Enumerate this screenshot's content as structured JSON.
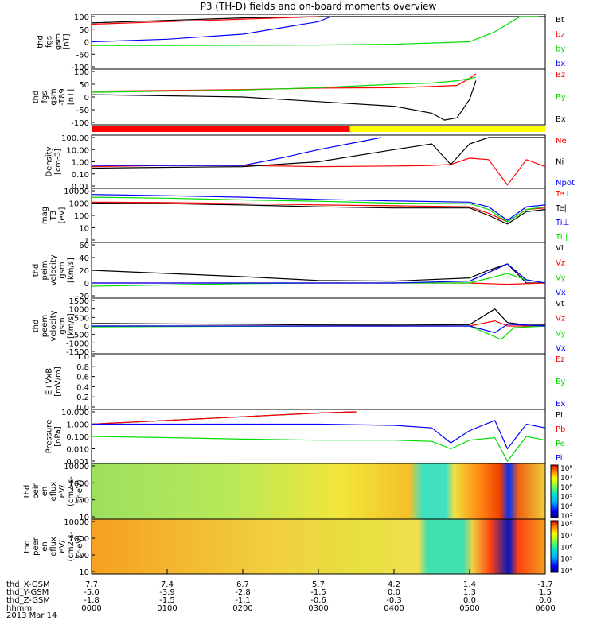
{
  "title": "P3 (TH-D) fields and on-board moments overview",
  "colors": {
    "black": "#000000",
    "red": "#ff0000",
    "green": "#00dd00",
    "blue": "#0000ff",
    "yellow": "#ffff00"
  },
  "panels": [
    {
      "id": "fgs",
      "ylabel": [
        "thd",
        "fgs",
        "gsm",
        "[nT]"
      ],
      "ticks": [
        "100",
        "50",
        "0",
        "-50",
        "-100"
      ],
      "legend": [
        {
          "text": "Bt",
          "color": "black"
        },
        {
          "text": "bz",
          "color": "red"
        },
        {
          "text": "by",
          "color": "green"
        },
        {
          "text": "bx",
          "color": "blue"
        }
      ]
    },
    {
      "id": "fgs_t89",
      "ylabel": [
        "thd",
        "fgs",
        "gsm",
        "-T89",
        "[nT]"
      ],
      "ticks": [
        "100",
        "50",
        "0",
        "-50",
        "-100"
      ],
      "legend": [
        {
          "text": "Bz",
          "color": "red"
        },
        {
          "text": "By",
          "color": "green"
        },
        {
          "text": "Bx",
          "color": "black"
        }
      ]
    },
    {
      "id": "density",
      "ylabel": [
        "Density",
        "[cm-3]"
      ],
      "ticks": [
        "100.00",
        "10.00",
        "1.00",
        "0.10",
        "0.01"
      ],
      "legend": [
        {
          "text": "Ne",
          "color": "red"
        },
        {
          "text": "Ni",
          "color": "black"
        },
        {
          "text": "Npot",
          "color": "blue"
        }
      ]
    },
    {
      "id": "temp",
      "ylabel": [
        "mag",
        "T3",
        "[eV]"
      ],
      "ticks": [
        "10000",
        "1000",
        "100",
        "10",
        "1"
      ],
      "legend": [
        {
          "text": "Te⊥",
          "color": "red"
        },
        {
          "text": "Te||",
          "color": "black"
        },
        {
          "text": "Ti⊥",
          "color": "blue"
        },
        {
          "text": "Ti||",
          "color": "green"
        }
      ]
    },
    {
      "id": "peim",
      "ylabel": [
        "thd",
        "peim",
        "velocity",
        "gsm",
        "[km/s]"
      ],
      "ticks": [
        "60",
        "40",
        "20",
        "0",
        "-20"
      ],
      "legend": [
        {
          "text": "Vt",
          "color": "black"
        },
        {
          "text": "Vz",
          "color": "red"
        },
        {
          "text": "Vy",
          "color": "green"
        },
        {
          "text": "Vx",
          "color": "blue"
        }
      ]
    },
    {
      "id": "peem",
      "ylabel": [
        "thd",
        "peem",
        "velocity",
        "gsm",
        "[km/s]"
      ],
      "ticks": [
        "1500",
        "1000",
        "500",
        "0",
        "-500",
        "-1000",
        "-1500"
      ],
      "legend": [
        {
          "text": "Vt",
          "color": "black"
        },
        {
          "text": "Vz",
          "color": "red"
        },
        {
          "text": "Vy",
          "color": "green"
        },
        {
          "text": "Vx",
          "color": "blue"
        }
      ]
    },
    {
      "id": "efield",
      "ylabel": [
        "E+VxB",
        "[mV/m]"
      ],
      "ticks": [
        "1.0",
        "0.8",
        "0.6",
        "0.4",
        "0.2",
        "0.0"
      ],
      "legend": [
        {
          "text": "Ez",
          "color": "red"
        },
        {
          "text": "Ey",
          "color": "green"
        },
        {
          "text": "Ex",
          "color": "blue"
        }
      ]
    },
    {
      "id": "pressure",
      "ylabel": [
        "Pressure",
        "[nPa]"
      ],
      "ticks": [
        "10.000",
        "1.000",
        "0.100",
        "0.010",
        "0.001"
      ],
      "legend": [
        {
          "text": "Pt",
          "color": "black"
        },
        {
          "text": "Pb",
          "color": "red"
        },
        {
          "text": "Pe",
          "color": "green"
        },
        {
          "text": "Pi",
          "color": "blue"
        }
      ]
    },
    {
      "id": "peir",
      "ylabel": [
        "thd",
        "peir",
        "en",
        "eflux",
        "eV/",
        "(cm2-s-",
        "sr-eV)"
      ],
      "ticks": [
        "10000",
        "1000",
        "100",
        "10"
      ],
      "colorbar": [
        "10⁸",
        "10⁷",
        "10⁶",
        "10⁵",
        "10⁴",
        "10³"
      ]
    },
    {
      "id": "peer",
      "ylabel": [
        "thd",
        "peer",
        "en",
        "eflux",
        "eV/",
        "(cm2-s-",
        "sr-eV)"
      ],
      "ticks": [
        "10000",
        "1000",
        "100",
        "10"
      ],
      "colorbar": [
        "10⁸",
        "10⁷",
        "10⁶",
        "10⁵",
        "10⁴"
      ]
    }
  ],
  "footer": {
    "rows": [
      {
        "label": "thd_X-GSM",
        "values": [
          "7.7",
          "7.4",
          "6.7",
          "5.7",
          "4.2",
          "1.4",
          "-1.7"
        ]
      },
      {
        "label": "thd_Y-GSM",
        "values": [
          "-5.0",
          "-3.9",
          "-2.8",
          "-1.5",
          "0.0",
          "1.3",
          "1.5"
        ]
      },
      {
        "label": "thd_Z-GSM",
        "values": [
          "-1.8",
          "-1.5",
          "-1.1",
          "-0.6",
          "-0.3",
          "0.0",
          "0.0"
        ]
      },
      {
        "label": "hhmm",
        "values": [
          "0000",
          "0100",
          "0200",
          "0300",
          "0400",
          "0500",
          "0600"
        ]
      }
    ],
    "date": "2013 Mar 14"
  },
  "chart_data": {
    "type": "line",
    "title": "P3 (TH-D) fields and on-board moments overview",
    "x_axis": {
      "label": "hhmm",
      "ticks": [
        "0000",
        "0100",
        "0200",
        "0300",
        "0400",
        "0500",
        "0600"
      ]
    },
    "panels": [
      {
        "name": "thd fgs gsm [nT]",
        "ylim": [
          -100,
          100
        ],
        "series": [
          {
            "name": "Bt",
            "x": [
              0,
              60,
              120,
              180,
              240,
              300,
              330,
              345,
              360
            ],
            "y": [
              75,
              85,
              95,
              100,
              100,
              100,
              100,
              100,
              100
            ]
          },
          {
            "name": "bz",
            "x": [
              0,
              60,
              120,
              180
            ],
            "y": [
              70,
              80,
              90,
              100
            ]
          },
          {
            "name": "by",
            "x": [
              0,
              60,
              120,
              180,
              240,
              300,
              320,
              340,
              355
            ],
            "y": [
              -15,
              -15,
              -14,
              -13,
              -10,
              0,
              40,
              100,
              100
            ]
          },
          {
            "name": "bx",
            "x": [
              0,
              60,
              120,
              180,
              190
            ],
            "y": [
              0,
              10,
              30,
              80,
              100
            ]
          }
        ]
      },
      {
        "name": "thd fgs gsm -T89 [nT]",
        "ylim": [
          -120,
          100
        ],
        "series": [
          {
            "name": "Bz",
            "x": [
              0,
              60,
              120,
              180,
              240,
              270,
              290,
              300,
              305
            ],
            "y": [
              15,
              18,
              22,
              28,
              30,
              35,
              40,
              70,
              90
            ]
          },
          {
            "name": "By",
            "x": [
              0,
              60,
              120,
              180,
              240,
              270,
              290,
              300,
              305
            ],
            "y": [
              10,
              15,
              20,
              30,
              45,
              50,
              60,
              70,
              75
            ]
          },
          {
            "name": "Bx",
            "x": [
              0,
              60,
              120,
              180,
              240,
              270,
              280,
              290,
              300,
              305
            ],
            "y": [
              0,
              -5,
              -10,
              -30,
              -50,
              -80,
              -110,
              -100,
              -20,
              60
            ]
          }
        ]
      },
      {
        "name": "Density [cm-3]",
        "ylim": [
          0.01,
          100
        ],
        "scale": "log",
        "series": [
          {
            "name": "Ne",
            "x": [
              0,
              60,
              120,
              180,
              240,
              270,
              285,
              300,
              315,
              330,
              345,
              360
            ],
            "y": [
              0.4,
              0.5,
              0.5,
              0.4,
              0.45,
              0.5,
              0.6,
              2,
              1.5,
              0.012,
              1.5,
              0.4
            ]
          },
          {
            "name": "Ni",
            "x": [
              0,
              60,
              120,
              180,
              240,
              270,
              285,
              300,
              315,
              330,
              360
            ],
            "y": [
              0.3,
              0.35,
              0.4,
              1,
              10,
              30,
              0.6,
              30,
              100,
              100,
              100
            ]
          },
          {
            "name": "Npot",
            "x": [
              0,
              60,
              120,
              150,
              180,
              210,
              230
            ],
            "y": [
              0.5,
              0.5,
              0.5,
              2,
              10,
              40,
              100
            ]
          }
        ]
      },
      {
        "name": "mag T3 [eV]",
        "ylim": [
          1,
          10000
        ],
        "scale": "log",
        "series": [
          {
            "name": "Te⊥",
            "x": [
              0,
              60,
              120,
              180,
              240,
              300,
              315,
              330,
              345,
              360
            ],
            "y": [
              1200,
              1100,
              900,
              700,
              600,
              500,
              150,
              30,
              300,
              400
            ]
          },
          {
            "name": "Te||",
            "x": [
              0,
              60,
              120,
              180,
              240,
              300,
              315,
              330,
              345,
              360
            ],
            "y": [
              1000,
              900,
              700,
              500,
              400,
              400,
              100,
              20,
              200,
              300
            ]
          },
          {
            "name": "Ti⊥",
            "x": [
              0,
              60,
              120,
              180,
              240,
              300,
              315,
              330,
              345,
              360
            ],
            "y": [
              5000,
              4000,
              3000,
              2000,
              1500,
              1200,
              500,
              40,
              500,
              700
            ]
          },
          {
            "name": "Ti||",
            "x": [
              0,
              60,
              120,
              180,
              240,
              300,
              315,
              330,
              345,
              360
            ],
            "y": [
              3000,
              2500,
              1800,
              1400,
              1000,
              900,
              300,
              30,
              300,
              500
            ]
          }
        ]
      },
      {
        "name": "thd peim velocity gsm [km/s]",
        "ylim": [
          -20,
          60
        ],
        "series": [
          {
            "name": "Vt",
            "x": [
              0,
              60,
              120,
              180,
              240,
              300,
              315,
              330,
              345,
              360
            ],
            "y": [
              20,
              15,
              10,
              4,
              3,
              8,
              20,
              30,
              0,
              0
            ]
          },
          {
            "name": "Vz",
            "x": [
              0,
              60,
              120,
              180,
              240,
              300,
              330,
              360
            ],
            "y": [
              0,
              0,
              0,
              0,
              0,
              0,
              -2,
              0
            ]
          },
          {
            "name": "Vy",
            "x": [
              0,
              60,
              120,
              180,
              240,
              300,
              330,
              345,
              360
            ],
            "y": [
              -5,
              -3,
              -1,
              0,
              0,
              0,
              15,
              5,
              0
            ]
          },
          {
            "name": "Vx",
            "x": [
              0,
              60,
              120,
              180,
              240,
              300,
              330,
              345,
              360
            ],
            "y": [
              0,
              0,
              0,
              0,
              0,
              3,
              30,
              5,
              0
            ]
          }
        ]
      },
      {
        "name": "thd peem velocity gsm [km/s]",
        "ylim": [
          -1500,
          1500
        ],
        "series": [
          {
            "name": "Vt",
            "x": [
              0,
              60,
              120,
              180,
              240,
              300,
              320,
              330,
              345,
              360
            ],
            "y": [
              150,
              120,
              100,
              60,
              50,
              80,
              1000,
              200,
              60,
              50
            ]
          },
          {
            "name": "Vz",
            "x": [
              0,
              60,
              120,
              180,
              240,
              300,
              320,
              330,
              360
            ],
            "y": [
              0,
              0,
              0,
              0,
              0,
              0,
              300,
              0,
              0
            ]
          },
          {
            "name": "Vy",
            "x": [
              0,
              60,
              120,
              180,
              240,
              300,
              325,
              335,
              360
            ],
            "y": [
              -50,
              -30,
              -20,
              -10,
              0,
              0,
              -800,
              -100,
              0
            ]
          },
          {
            "name": "Vx",
            "x": [
              0,
              60,
              120,
              180,
              240,
              300,
              320,
              330,
              360
            ],
            "y": [
              0,
              0,
              0,
              0,
              0,
              0,
              -400,
              100,
              0
            ]
          }
        ]
      },
      {
        "name": "E+VxB [mV/m]",
        "ylim": [
          0,
          1
        ],
        "series": []
      },
      {
        "name": "Pressure [nPa]",
        "ylim": [
          0.001,
          10
        ],
        "scale": "log",
        "series": [
          {
            "name": "Pt",
            "x": [
              0,
              60,
              120,
              180,
              210
            ],
            "y": [
              1,
              2,
              4,
              8,
              10
            ]
          },
          {
            "name": "Pb",
            "x": [
              0,
              60,
              120,
              180,
              210
            ],
            "y": [
              1,
              2,
              4,
              8,
              10
            ]
          },
          {
            "name": "Pe",
            "x": [
              0,
              60,
              120,
              180,
              240,
              270,
              285,
              300,
              320,
              330,
              345,
              360
            ],
            "y": [
              0.1,
              0.08,
              0.06,
              0.05,
              0.05,
              0.04,
              0.01,
              0.05,
              0.08,
              0.001,
              0.1,
              0.05
            ]
          },
          {
            "name": "Pi",
            "x": [
              0,
              60,
              120,
              180,
              240,
              270,
              285,
              300,
              320,
              330,
              345,
              360
            ],
            "y": [
              1,
              1,
              1,
              1,
              0.8,
              0.5,
              0.03,
              0.3,
              2,
              0.01,
              1,
              0.5
            ]
          }
        ]
      },
      {
        "name": "thd peir en eflux",
        "type": "heatmap",
        "ylim": [
          10,
          10000
        ],
        "scale": "log",
        "zlim": [
          "10³",
          "10⁸"
        ]
      },
      {
        "name": "thd peer en eflux",
        "type": "heatmap",
        "ylim": [
          10,
          10000
        ],
        "scale": "log",
        "zlim": [
          "10⁴",
          "10⁸"
        ]
      }
    ]
  }
}
